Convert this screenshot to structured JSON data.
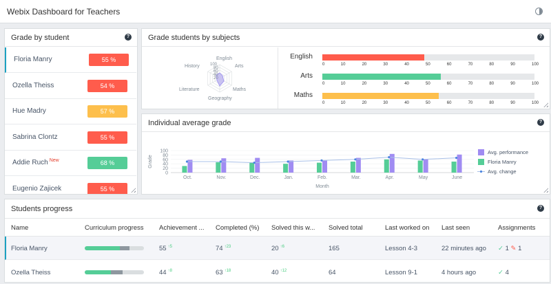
{
  "app": {
    "title": "Webix Dashboard for Teachers",
    "theme_icon": "contrast-icon"
  },
  "grade_by_student": {
    "title": "Grade by student",
    "students": [
      {
        "name": "Floria Manry",
        "grade": "55 %",
        "color": "#ff5c4c",
        "new": ""
      },
      {
        "name": "Ozella Theiss",
        "grade": "54 %",
        "color": "#ff5c4c",
        "new": ""
      },
      {
        "name": "Hue Madry",
        "grade": "57 %",
        "color": "#fdbf4c",
        "new": ""
      },
      {
        "name": "Sabrina Clontz",
        "grade": "55 %",
        "color": "#ff5c4c",
        "new": ""
      },
      {
        "name": "Addie Ruch",
        "grade": "68 %",
        "color": "#55cd97",
        "new": "New"
      },
      {
        "name": "Eugenio Zajicek",
        "grade": "55 %",
        "color": "#ff5c4c",
        "new": ""
      }
    ]
  },
  "grade_by_subjects": {
    "title": "Grade students by subjects",
    "radar": {
      "axes": [
        "English",
        "Arts",
        "Maths",
        "Geography",
        "Literature",
        "History"
      ],
      "scale": [
        "100",
        "80",
        "60",
        "40",
        "20"
      ]
    },
    "bars": [
      {
        "label": "English",
        "value": 48,
        "color": "#ff5c4c"
      },
      {
        "label": "Arts",
        "value": 56,
        "color": "#55cd97"
      },
      {
        "label": "Maths",
        "value": 55,
        "color": "#fdbf4c"
      }
    ],
    "ticks": [
      "0",
      "10",
      "20",
      "30",
      "40",
      "50",
      "60",
      "70",
      "80",
      "90",
      "100"
    ]
  },
  "chart_data": {
    "type": "bar",
    "title": "Individual average grade",
    "xlabel": "Month",
    "ylabel": "Grade",
    "ylim": [
      0,
      100
    ],
    "yticks": [
      "100",
      "80",
      "60",
      "40",
      "20",
      "0"
    ],
    "categories": [
      "Oct.",
      "Nov.",
      "Dec.",
      "Jan.",
      "Feb.",
      "Mar.",
      "Apr.",
      "May",
      "June"
    ],
    "series": [
      {
        "name": "Avg. performance",
        "type": "bar",
        "color": "#a08cf2",
        "values": [
          58,
          65,
          67,
          55,
          55,
          67,
          85,
          60,
          82
        ]
      },
      {
        "name": "Floria Manry",
        "type": "bar",
        "color": "#55cd97",
        "values": [
          30,
          47,
          47,
          40,
          45,
          50,
          60,
          55,
          50
        ]
      },
      {
        "name": "Avg. change",
        "type": "line",
        "color": "#4c86e0",
        "values": [
          50,
          50,
          45,
          50,
          55,
          60,
          70,
          60,
          67
        ]
      }
    ]
  },
  "students_progress": {
    "title": "Students progress",
    "columns": [
      "Name",
      "Curriculum progress",
      "Achievement ...",
      "Completed (%)",
      "Solved this w...",
      "Solved total",
      "Last worked on",
      "Last seen",
      "Assignments"
    ],
    "rows": [
      {
        "name": "Floria Manry",
        "progress_done": 0.59,
        "progress_review": 0.17,
        "achievement": "55",
        "achievement_up": "5",
        "completed": "74",
        "completed_up": "23",
        "solved_week": "20",
        "solved_week_up": "6",
        "solved_total": "165",
        "last_worked": "Lesson 4-3",
        "last_seen": "22 minutes ago",
        "assign_done": "1",
        "assign_edit": "1"
      },
      {
        "name": "Ozella Theiss",
        "progress_done": 0.44,
        "progress_review": 0.2,
        "achievement": "44",
        "achievement_up": "8",
        "completed": "63",
        "completed_up": "18",
        "solved_week": "40",
        "solved_week_up": "12",
        "solved_total": "64",
        "last_worked": "Lesson 9-1",
        "last_seen": "4 hours ago",
        "assign_done": "4",
        "assign_edit": ""
      }
    ]
  }
}
